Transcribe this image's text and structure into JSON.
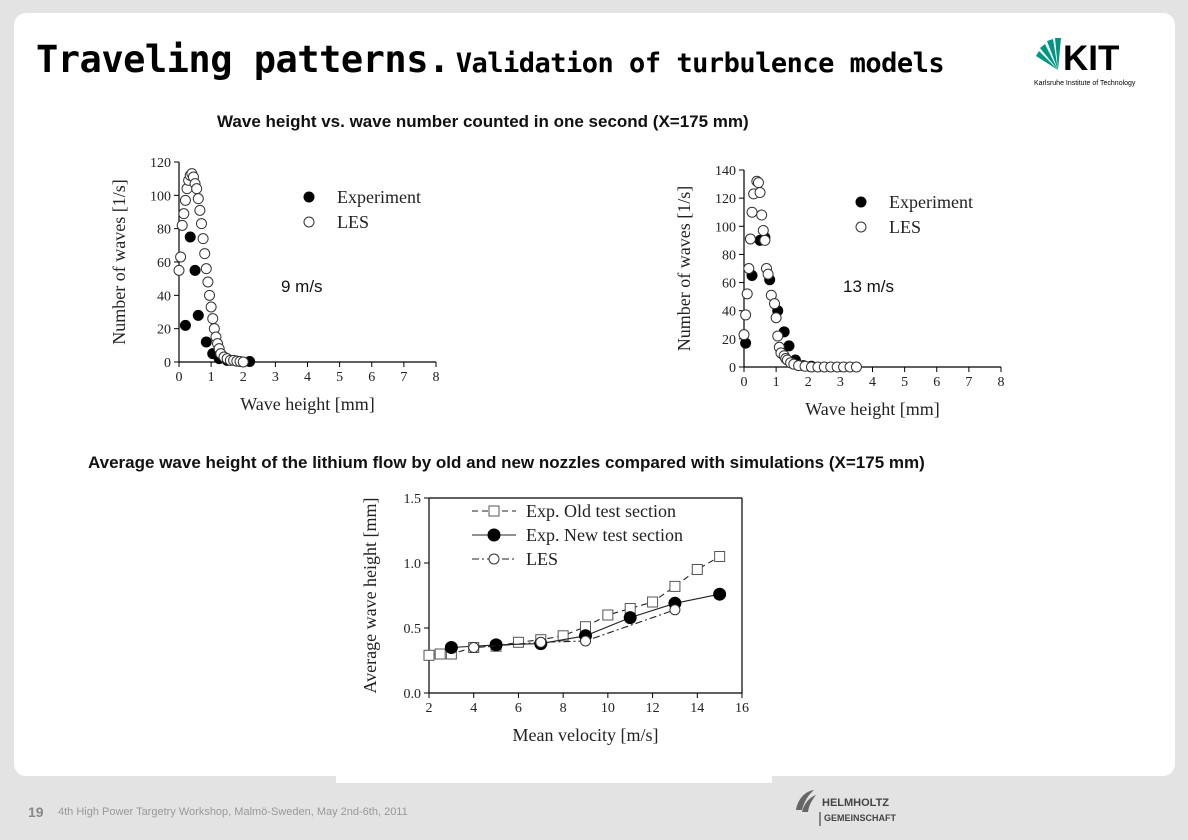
{
  "slide": {
    "title_main": "Traveling patterns.",
    "title_sub": "Validation of turbulence models",
    "heading_top": "Wave height vs. wave number counted in one second (X=175 mm)",
    "heading_bottom": "Average wave height of the lithium flow by old and new nozzles compared with simulations (X=175 mm)",
    "footer_page": "19",
    "footer_text": "4th High Power Targetry Workshop, Malmö-Sweden, May 2nd-6th, 2011"
  },
  "logos": {
    "kit": {
      "name": "KIT",
      "subtitle": "Karlsruhe Institute of Technology",
      "color": "#009682"
    },
    "helmholtz": {
      "line1": "HELMHOLTZ",
      "line2": "GEMEINSCHAFT",
      "color": "#666666"
    }
  },
  "chart_data": [
    {
      "type": "scatter",
      "annotation": "9 m/s",
      "xlabel": "Wave height [mm]",
      "ylabel": "Number of waves [1/s]",
      "xlim": [
        0,
        8
      ],
      "ylim": [
        0,
        120
      ],
      "xticks": [
        0,
        1,
        2,
        3,
        4,
        5,
        6,
        7,
        8
      ],
      "yticks": [
        0,
        20,
        40,
        60,
        80,
        100,
        120
      ],
      "legend_position": "top-right",
      "series": [
        {
          "name": "Experiment",
          "marker": "filled-circle",
          "x": [
            0.2,
            0.35,
            0.5,
            0.6,
            0.85,
            1.05,
            1.25,
            1.5,
            1.8,
            2.2
          ],
          "y": [
            22,
            75,
            55,
            28,
            12,
            5,
            2,
            1,
            0.5,
            0.3
          ]
        },
        {
          "name": "LES",
          "marker": "open-circle",
          "x": [
            0.0,
            0.05,
            0.1,
            0.15,
            0.2,
            0.25,
            0.3,
            0.35,
            0.4,
            0.45,
            0.5,
            0.55,
            0.6,
            0.65,
            0.7,
            0.75,
            0.8,
            0.85,
            0.9,
            0.95,
            1.0,
            1.05,
            1.1,
            1.15,
            1.2,
            1.25,
            1.3,
            1.4,
            1.5,
            1.6,
            1.7,
            1.8,
            1.9,
            2.0
          ],
          "y": [
            55,
            63,
            82,
            89,
            97,
            104,
            109,
            112,
            113,
            111,
            107,
            104,
            98,
            91,
            83,
            74,
            65,
            56,
            48,
            40,
            33,
            26,
            20,
            15,
            11,
            8,
            5,
            3,
            2,
            1,
            1,
            0.5,
            0.3,
            0
          ]
        }
      ]
    },
    {
      "type": "scatter",
      "annotation": "13 m/s",
      "xlabel": "Wave height [mm]",
      "ylabel": "Number of waves [1/s]",
      "xlim": [
        0,
        8
      ],
      "ylim": [
        0,
        140
      ],
      "xticks": [
        0,
        1,
        2,
        3,
        4,
        5,
        6,
        7,
        8
      ],
      "yticks": [
        0,
        20,
        40,
        60,
        80,
        100,
        120,
        140
      ],
      "legend_position": "top-right",
      "series": [
        {
          "name": "Experiment",
          "marker": "filled-circle",
          "x": [
            0.05,
            0.25,
            0.5,
            0.65,
            0.8,
            1.05,
            1.25,
            1.4,
            1.6,
            1.85,
            2.1
          ],
          "y": [
            17,
            65,
            90,
            92,
            62,
            40,
            25,
            15,
            5,
            1,
            0.5
          ]
        },
        {
          "name": "LES",
          "marker": "open-circle",
          "x": [
            0.0,
            0.05,
            0.1,
            0.15,
            0.2,
            0.25,
            0.3,
            0.4,
            0.45,
            0.5,
            0.55,
            0.6,
            0.65,
            0.7,
            0.75,
            0.85,
            0.95,
            1.0,
            1.05,
            1.1,
            1.15,
            1.25,
            1.3,
            1.35,
            1.45,
            1.55,
            1.7,
            1.9,
            2.1,
            2.3,
            2.5,
            2.7,
            2.9,
            3.1,
            3.3,
            3.5
          ],
          "y": [
            23,
            37,
            52,
            70,
            91,
            110,
            123,
            132,
            131,
            124,
            108,
            97,
            90,
            70,
            66,
            51,
            45,
            35,
            22,
            14,
            10,
            8,
            6,
            5,
            3,
            2,
            1,
            0.5,
            0,
            0,
            0,
            0,
            0,
            0,
            0,
            0
          ]
        }
      ]
    },
    {
      "type": "line",
      "xlabel": "Mean velocity [m/s]",
      "ylabel": "Average wave height [mm]",
      "xlim": [
        2,
        16
      ],
      "ylim": [
        0,
        1.5
      ],
      "xticks": [
        2,
        4,
        6,
        8,
        10,
        12,
        14,
        16
      ],
      "yticks": [
        0.0,
        0.5,
        1.0,
        1.5
      ],
      "legend_position": "top-left",
      "series": [
        {
          "name": "Exp. Old test section",
          "marker": "open-square",
          "linestyle": "dashed",
          "x": [
            2,
            2.5,
            3,
            4,
            5,
            6,
            7,
            8,
            9,
            10,
            11,
            12,
            13,
            14,
            15
          ],
          "y": [
            0.29,
            0.3,
            0.3,
            0.35,
            0.36,
            0.39,
            0.41,
            0.44,
            0.51,
            0.6,
            0.65,
            0.7,
            0.82,
            0.95,
            1.05
          ]
        },
        {
          "name": "Exp. New test section",
          "marker": "filled-circle",
          "linestyle": "solid",
          "x": [
            3,
            5,
            7,
            9,
            11,
            13,
            15
          ],
          "y": [
            0.35,
            0.37,
            0.38,
            0.44,
            0.58,
            0.69,
            0.76
          ]
        },
        {
          "name": "LES",
          "marker": "open-circle",
          "linestyle": "dashdot",
          "x": [
            4,
            7,
            9,
            13
          ],
          "y": [
            0.35,
            0.39,
            0.4,
            0.64
          ]
        }
      ]
    }
  ]
}
